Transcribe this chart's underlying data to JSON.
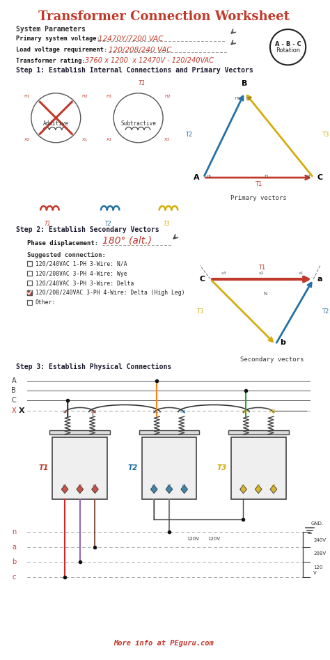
{
  "title": "Transformer Connection Worksheet",
  "title_color": "#c0392b",
  "bg_color": "#ffffff",
  "section_color": "#2c3e50",
  "step_color": "#1a1a2e",
  "highlight_red": "#c0392b",
  "highlight_blue": "#2471a3",
  "highlight_yellow": "#d4ac0d",
  "handwritten_color": "#c0392b",
  "system_params_label": "System Parameters",
  "param1_label": "Primary system voltage:",
  "param1_value": "12470Y/7200 VAC",
  "param2_label": "Load voltage requirement:",
  "param2_value": "120/208/240 VAC",
  "param3_label": "Transformer rating:",
  "param3_value": "3760 x 1200  x 12470V - 120/240VAC",
  "step1_label": "Step 1: Establish Internal Connections and Primary Vectors",
  "step2_label": "Step 2: Establish Secondary Vectors",
  "step3_label": "Step 3: Establish Physical Connections",
  "phase_label": "Phase displacement:",
  "phase_value": "180° (alt.)",
  "suggested_label": "Suggested connection:",
  "options": [
    "120/240VAC 1-PH 3-Wire: N/A",
    "120/208VAC 3-PH 4-Wire: Wye",
    "120/240VAC 3-PH 3-Wire: Delta",
    "120/208/240VAC 3-PH 4-Wire: Delta (High Leg)",
    "Other:"
  ],
  "checked_option": 3,
  "footer": "More info at PEguru.com",
  "footer_color": "#c0392b",
  "abc_rotation": "A - B - C\nRotation",
  "primary_vectors_label": "Primary vectors",
  "secondary_vectors_label": "Secondary vectors"
}
